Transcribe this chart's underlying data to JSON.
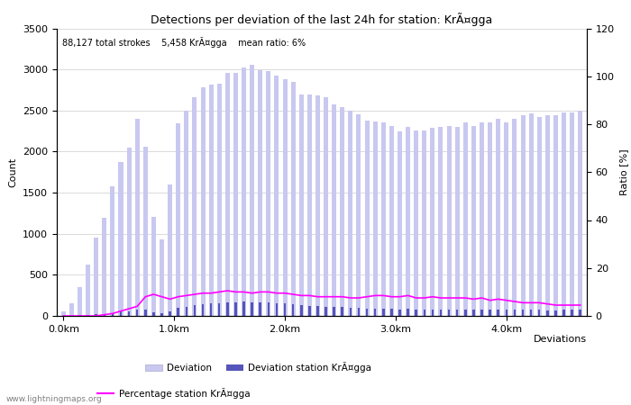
{
  "title": "Detections per deviation of the last 24h for station: KrÃ¤gga",
  "subtitle": "88,127 total strokes    5,458 KrÃ¤gga    mean ratio: 6%",
  "xlabel": "Deviations",
  "ylabel_left": "Count",
  "ylabel_right": "Ratio [%]",
  "x_tick_labels": [
    "0.0km",
    "1.0km",
    "2.0km",
    "3.0km",
    "4.0km"
  ],
  "x_tick_positions": [
    0,
    10,
    20,
    30,
    40
  ],
  "ylim_left": [
    0,
    3500
  ],
  "ylim_right": [
    0,
    120
  ],
  "yticks_left": [
    0,
    500,
    1000,
    1500,
    2000,
    2500,
    3000,
    3500
  ],
  "yticks_right": [
    0,
    20,
    40,
    60,
    80,
    100,
    120
  ],
  "total_deviation_bars": [
    50,
    150,
    350,
    620,
    950,
    1190,
    1580,
    1870,
    2050,
    2400,
    2060,
    1210,
    930,
    1600,
    2340,
    2500,
    2660,
    2780,
    2820,
    2830,
    2960,
    2960,
    3020,
    3060,
    2990,
    2980,
    2930,
    2880,
    2850,
    2700,
    2700,
    2680,
    2660,
    2570,
    2540,
    2500,
    2450,
    2380,
    2370,
    2350,
    2310,
    2250,
    2300,
    2260,
    2260,
    2290,
    2300,
    2310,
    2300,
    2350,
    2310,
    2360,
    2360,
    2400,
    2360,
    2400,
    2440,
    2460,
    2420,
    2440,
    2440,
    2480,
    2480,
    2500
  ],
  "station_deviation_bars": [
    2,
    5,
    8,
    15,
    20,
    25,
    35,
    50,
    60,
    80,
    75,
    45,
    30,
    60,
    100,
    115,
    130,
    140,
    150,
    155,
    165,
    165,
    170,
    165,
    165,
    165,
    155,
    150,
    145,
    130,
    125,
    120,
    115,
    110,
    105,
    100,
    95,
    90,
    90,
    90,
    85,
    80,
    85,
    80,
    75,
    80,
    80,
    80,
    80,
    80,
    75,
    80,
    75,
    80,
    75,
    75,
    75,
    75,
    75,
    70,
    70,
    75,
    75,
    75
  ],
  "percentage_line": [
    0,
    0,
    0,
    0,
    0,
    0.5,
    1,
    2,
    3,
    4,
    8,
    9,
    8,
    7,
    8,
    8.5,
    9,
    9.5,
    9.5,
    10,
    10.5,
    10,
    10,
    9.5,
    10,
    10,
    9.5,
    9.5,
    9,
    8.5,
    8.5,
    8,
    8,
    8,
    8,
    7.5,
    7.5,
    8,
    8.5,
    8.5,
    8,
    8,
    8.5,
    7.5,
    7.5,
    8,
    7.5,
    7.5,
    7.5,
    7.5,
    7,
    7.5,
    6.5,
    7,
    6.5,
    6,
    5.5,
    5.5,
    5.5,
    5,
    4.5,
    4.5,
    4.5,
    4.5
  ],
  "color_total_bar": "#c8c8f0",
  "color_station_bar": "#5555bb",
  "color_percentage_line": "#ff00ff",
  "color_grid": "#cccccc",
  "background_color": "#ffffff",
  "legend_items": [
    "Deviation",
    "Deviation station KrÃ¤gga",
    "Percentage station KrÃ¤gga"
  ],
  "watermark": "www.lightningmaps.org",
  "n_bars": 64
}
